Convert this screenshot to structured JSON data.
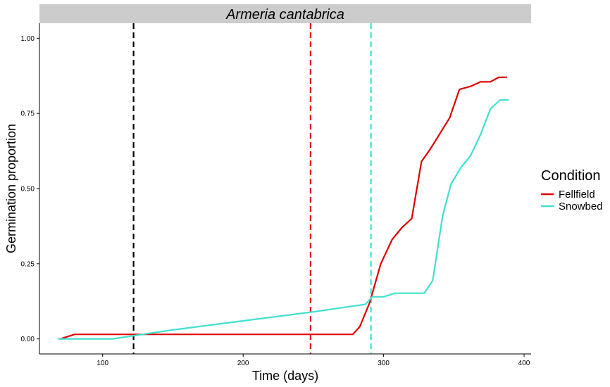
{
  "chart_data": {
    "type": "line",
    "facet_title": "Armeria cantabrica",
    "xlabel": "Time (days)",
    "ylabel": "Germination proportion",
    "xlim": [
      55,
      405
    ],
    "ylim": [
      -0.05,
      1.05
    ],
    "x_ticks": [
      100,
      200,
      300,
      400
    ],
    "x_tick_labels": [
      "100",
      "200",
      "300",
      "400"
    ],
    "y_ticks": [
      0,
      0.25,
      0.5,
      0.75,
      1
    ],
    "y_tick_labels": [
      "0.00",
      "0.25",
      "0.50",
      "0.75",
      "1.00"
    ],
    "grid": false,
    "legend": {
      "title": "Condition",
      "position": "right"
    },
    "series": [
      {
        "name": "Fellfield",
        "color": "#e00000",
        "points": [
          [
            70,
            0
          ],
          [
            80,
            0.015
          ],
          [
            121,
            0.015
          ],
          [
            150,
            0.015
          ],
          [
            200,
            0.015
          ],
          [
            250,
            0.015
          ],
          [
            278,
            0.015
          ],
          [
            283,
            0.04
          ],
          [
            290,
            0.12
          ],
          [
            298,
            0.25
          ],
          [
            306,
            0.33
          ],
          [
            313,
            0.37
          ],
          [
            320,
            0.4
          ],
          [
            327,
            0.59
          ],
          [
            333,
            0.63
          ],
          [
            341,
            0.69
          ],
          [
            347,
            0.735
          ],
          [
            354,
            0.83
          ],
          [
            362,
            0.84
          ],
          [
            369,
            0.855
          ],
          [
            376,
            0.855
          ],
          [
            382,
            0.87
          ],
          [
            388,
            0.87
          ]
        ]
      },
      {
        "name": "Snowbed",
        "color": "#40e0d0",
        "points": [
          [
            68,
            0
          ],
          [
            80,
            0
          ],
          [
            107,
            0
          ],
          [
            121,
            0.01
          ],
          [
            150,
            0.03
          ],
          [
            200,
            0.06
          ],
          [
            250,
            0.09
          ],
          [
            287,
            0.115
          ],
          [
            292,
            0.14
          ],
          [
            300,
            0.14
          ],
          [
            308,
            0.152
          ],
          [
            320,
            0.152
          ],
          [
            329,
            0.152
          ],
          [
            335,
            0.195
          ],
          [
            342,
            0.41
          ],
          [
            348,
            0.515
          ],
          [
            355,
            0.57
          ],
          [
            362,
            0.61
          ],
          [
            369,
            0.68
          ],
          [
            376,
            0.765
          ],
          [
            383,
            0.795
          ],
          [
            389,
            0.795
          ]
        ]
      }
    ],
    "vlines": [
      {
        "x": 122,
        "color": "#000000"
      },
      {
        "x": 248,
        "color": "#e00000"
      },
      {
        "x": 291,
        "color": "#40e0d0"
      }
    ]
  }
}
